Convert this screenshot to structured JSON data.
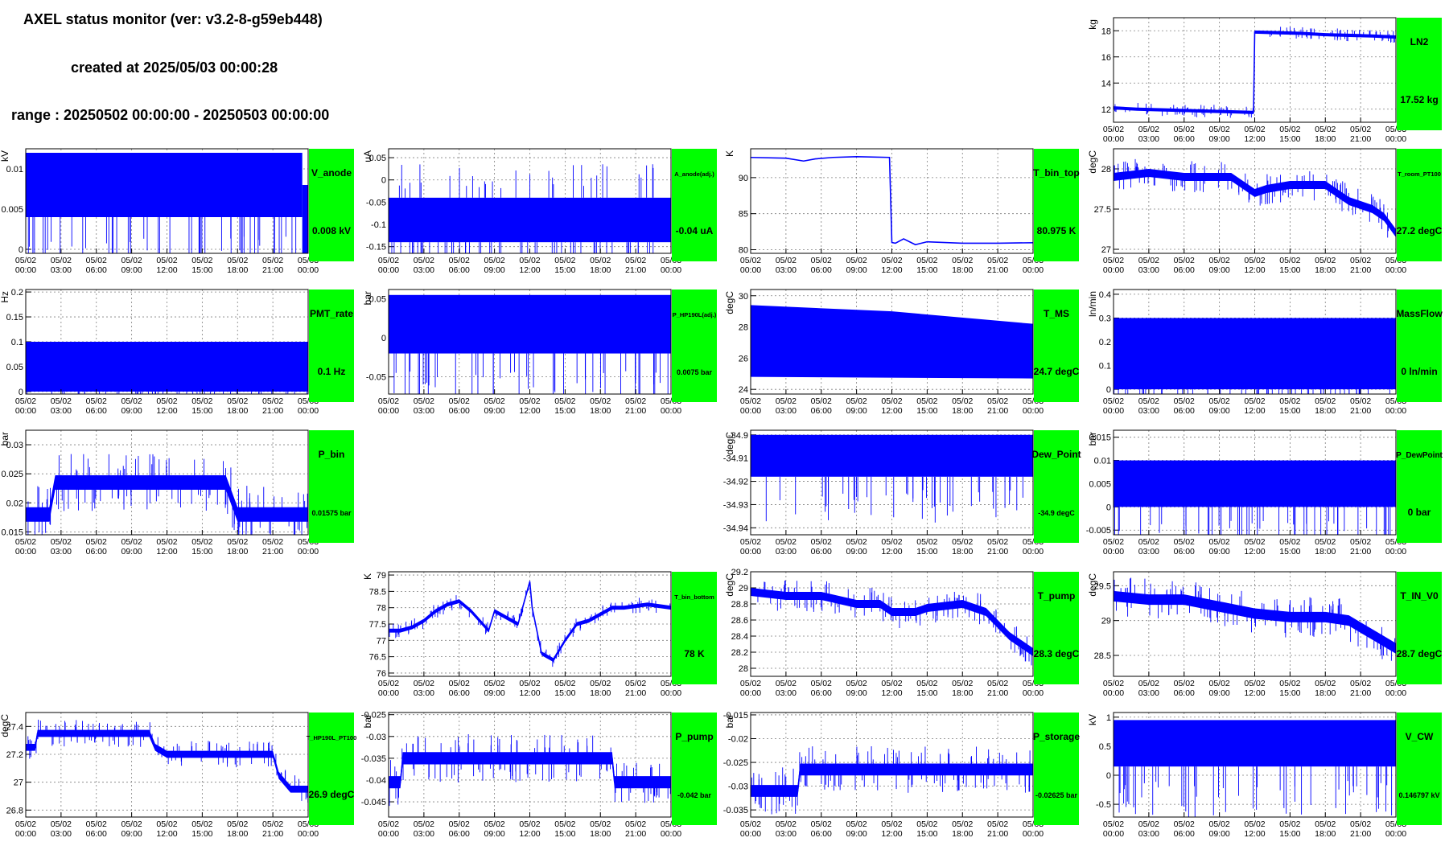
{
  "header": {
    "title": "AXEL status monitor (ver: v3.2-8-g59eb448)",
    "created": "created at 2025/05/03 00:00:28",
    "range": "range : 20250502 00:00:00 - 20250503 00:00:00"
  },
  "colors": {
    "trace": "#0000ff",
    "status_panel": "#00ff00",
    "grid": "#7f7f7f",
    "frame": "#000000"
  },
  "chart_data": [
    {
      "id": "LN2",
      "type": "line",
      "name": "LN2",
      "status": "17.52 kg",
      "ylabel": "kg",
      "ylim": [
        11,
        19
      ],
      "yticks": [
        "12",
        "14",
        "16",
        "18"
      ],
      "xticks": [
        "05/02\n00:00",
        "05/02\n03:00",
        "05/02\n06:00",
        "05/02\n09:00",
        "05/02\n12:00",
        "05/02\n15:00",
        "05/02\n18:00",
        "05/02\n21:00",
        "05/03\n00:00"
      ],
      "x": [
        0,
        2,
        4,
        6,
        8,
        10,
        11.9,
        12,
        14,
        16,
        18,
        20,
        22,
        24
      ],
      "y": [
        12.1,
        12.0,
        11.95,
        11.9,
        11.85,
        11.8,
        11.75,
        17.9,
        17.85,
        17.8,
        17.7,
        17.65,
        17.6,
        17.52
      ],
      "band": 0.25
    },
    {
      "id": "V_anode",
      "type": "line",
      "name": "V_anode",
      "status": "0.008 kV",
      "ylabel": "kV",
      "ylim": [
        -0.0005,
        0.0125
      ],
      "yticks": [
        "0",
        "0.005",
        "0.01"
      ],
      "xticks": [],
      "band_lo": 0.004,
      "band_hi": 0.012,
      "fill_to": 23.5,
      "after": 0.008
    },
    {
      "id": "A_anode",
      "type": "line",
      "name": "A_anode(adj.)",
      "status": "-0.04 uA",
      "ylabel": "uA",
      "ylim": [
        -0.165,
        0.07
      ],
      "yticks": [
        "0.05",
        "0",
        "-0.05",
        "-0.1",
        "-0.15"
      ],
      "band_lo": -0.14,
      "band_hi": -0.04,
      "spike_hi": 0.06
    },
    {
      "id": "T_bin_top",
      "type": "line",
      "name": "T_bin_top",
      "status": "80.975 K",
      "ylabel": "K",
      "ylim": [
        79.5,
        94
      ],
      "yticks": [
        "80",
        "85",
        "90"
      ],
      "x": [
        0,
        3,
        4.5,
        5.5,
        7,
        9,
        11.8,
        12,
        12.3,
        13,
        14,
        15,
        18,
        21,
        24
      ],
      "y": [
        92.8,
        92.7,
        92.3,
        92.6,
        92.8,
        92.9,
        92.8,
        81,
        80.9,
        81.5,
        80.7,
        81.1,
        80.9,
        80.9,
        80.975
      ]
    },
    {
      "id": "T_room_PT100",
      "type": "line",
      "name": "T_room_PT100",
      "status": "27.2 degC",
      "ylabel": "degC",
      "ylim": [
        26.95,
        28.25
      ],
      "yticks": [
        "27",
        "27.5",
        "28"
      ],
      "x": [
        0,
        3,
        6,
        9,
        10,
        12,
        13,
        15,
        18,
        20,
        22,
        23,
        24
      ],
      "y": [
        27.9,
        27.95,
        27.9,
        27.9,
        27.9,
        27.7,
        27.75,
        27.8,
        27.8,
        27.6,
        27.5,
        27.4,
        27.2
      ],
      "band": 0.1
    },
    {
      "id": "PMT_rate",
      "type": "line",
      "name": "PMT_rate",
      "status": "0.1 Hz",
      "ylabel": "Hz",
      "ylim": [
        -0.005,
        0.205
      ],
      "yticks": [
        "0.2",
        "0.15",
        "0.1",
        "0.05",
        "0"
      ],
      "band_lo": 0,
      "band_hi": 0.1
    },
    {
      "id": "P_HP190L",
      "type": "line",
      "name": "P_HP190L(adj.)",
      "status": "0.0075 bar",
      "ylabel": "bar",
      "ylim": [
        -0.072,
        0.062
      ],
      "yticks": [
        "0.05",
        "0",
        "-0.05"
      ],
      "band_lo": -0.02,
      "band_hi": 0.055
    },
    {
      "id": "T_MS",
      "type": "line",
      "name": "T_MS",
      "status": "24.7 degC",
      "ylabel": "degC",
      "ylim": [
        23.7,
        30.4
      ],
      "yticks": [
        "24",
        "26",
        "28",
        "30"
      ],
      "band_lo_start": 24.8,
      "band_hi_start": 29.4,
      "band_lo_end": 24.7,
      "band_hi_end": 28.2
    },
    {
      "id": "MassFlow",
      "type": "line",
      "name": "MassFlow",
      "status": "0 ln/min",
      "ylabel": "ln/min",
      "ylim": [
        -0.02,
        0.42
      ],
      "yticks": [
        "0.4",
        "0.3",
        "0.2",
        "0.1",
        "0"
      ],
      "band_lo": 0,
      "band_hi": 0.3
    },
    {
      "id": "P_bin",
      "type": "line",
      "name": "P_bin",
      "status": "0.01575 bar",
      "ylabel": "bar",
      "ylim": [
        0.0145,
        0.0325
      ],
      "yticks": [
        "0.03",
        "0.025",
        "0.02",
        "0.015"
      ],
      "x": [
        0,
        2,
        2.5,
        3,
        9,
        12,
        13.5,
        17,
        18,
        21,
        24
      ],
      "y": [
        0.018,
        0.018,
        0.0235,
        0.0235,
        0.0235,
        0.0235,
        0.0235,
        0.0235,
        0.018,
        0.018,
        0.018
      ],
      "band": 0.0025
    },
    {
      "id": "Dew_Point",
      "type": "line",
      "name": "Dew_Point",
      "status": "-34.9 degC",
      "ylabel": "degC",
      "ylim": [
        -34.943,
        -34.898
      ],
      "yticks": [
        "-34.9",
        "-34.91",
        "-34.92",
        "-34.93",
        "-34.94"
      ],
      "band_lo": -34.918,
      "band_hi": -34.9
    },
    {
      "id": "P_DewPoint",
      "type": "line",
      "name": "P_DewPoint",
      "status": "0 bar",
      "ylabel": "bar",
      "ylim": [
        -0.006,
        0.0165
      ],
      "yticks": [
        "0.015",
        "0.01",
        "0.005",
        "0",
        "-0.005"
      ],
      "band_lo": 0,
      "band_hi": 0.01
    },
    {
      "id": "T_bin_bottom",
      "type": "line",
      "name": "T_bin_bottom",
      "status": "78 K",
      "ylabel": "K",
      "ylim": [
        75.9,
        79.1
      ],
      "yticks": [
        "79",
        "78.5",
        "78",
        "77.5",
        "77",
        "76.5",
        "76"
      ],
      "x": [
        0,
        1,
        2,
        3,
        4,
        5,
        6,
        7,
        8,
        8.5,
        9,
        10,
        11,
        12,
        12.2,
        13,
        14,
        15,
        16,
        17,
        18,
        19,
        20,
        22,
        24
      ],
      "y": [
        77.3,
        77.3,
        77.4,
        77.6,
        77.9,
        78.1,
        78.2,
        77.9,
        77.5,
        77.3,
        77.9,
        77.7,
        77.5,
        78.8,
        78.0,
        76.6,
        76.4,
        77.0,
        77.5,
        77.6,
        77.8,
        78.0,
        78.0,
        78.1,
        78.0
      ],
      "band": 0.12
    },
    {
      "id": "T_pump",
      "type": "line",
      "name": "T_pump",
      "status": "28.3 degC",
      "ylabel": "degC",
      "ylim": [
        27.9,
        29.2
      ],
      "yticks": [
        "29.2",
        "29",
        "28.8",
        "28.6",
        "28.4",
        "28.2",
        "28"
      ],
      "x": [
        0,
        3,
        6,
        9,
        11,
        12,
        14,
        15,
        18,
        20,
        21,
        22,
        23,
        24
      ],
      "y": [
        28.95,
        28.9,
        28.9,
        28.8,
        28.8,
        28.7,
        28.7,
        28.75,
        28.8,
        28.7,
        28.55,
        28.4,
        28.3,
        28.2
      ],
      "band": 0.1
    },
    {
      "id": "T_IN_V0",
      "type": "line",
      "name": "T_IN_V0",
      "status": "28.7 degC",
      "ylabel": "degC",
      "ylim": [
        28.2,
        29.7
      ],
      "yticks": [
        "29.5",
        "29",
        "28.5"
      ],
      "x": [
        0,
        3,
        6,
        9,
        12,
        15,
        18,
        20,
        21,
        22,
        23,
        24
      ],
      "y": [
        29.35,
        29.3,
        29.3,
        29.2,
        29.1,
        29.05,
        29.05,
        29.0,
        28.9,
        28.8,
        28.7,
        28.6
      ],
      "band": 0.15
    },
    {
      "id": "T_HP190L_PT100",
      "type": "line",
      "name": "T_HP190L_PT100",
      "status": "26.9 degC",
      "ylabel": "degC",
      "ylim": [
        26.75,
        27.5
      ],
      "yticks": [
        "27.4",
        "27.2",
        "27",
        "26.8"
      ],
      "x": [
        0,
        0.8,
        1,
        10.5,
        11,
        12,
        21,
        21.5,
        22.5,
        24
      ],
      "y": [
        27.25,
        27.25,
        27.35,
        27.35,
        27.25,
        27.2,
        27.2,
        27.05,
        26.95,
        26.95
      ],
      "band": 0.05
    },
    {
      "id": "P_pump",
      "type": "line",
      "name": "P_pump",
      "status": "-0.042 bar",
      "ylabel": "bar",
      "ylim": [
        -0.0485,
        -0.0245
      ],
      "yticks": [
        "-0.025",
        "-0.03",
        "-0.035",
        "-0.04",
        "-0.045"
      ],
      "x": [
        0,
        1,
        1.2,
        13,
        19,
        19.2,
        24
      ],
      "y": [
        -0.0405,
        -0.0405,
        -0.035,
        -0.035,
        -0.035,
        -0.0405,
        -0.0405
      ],
      "band": 0.0028
    },
    {
      "id": "P_storage",
      "type": "line",
      "name": "P_storage",
      "status": "-0.02625 bar",
      "ylabel": "bar",
      "ylim": [
        -0.0365,
        -0.0145
      ],
      "yticks": [
        "-0.015",
        "-0.02",
        "-0.025",
        "-0.03",
        "-0.035"
      ],
      "x": [
        0,
        4,
        4.2,
        24
      ],
      "y": [
        -0.031,
        -0.031,
        -0.0265,
        -0.0265
      ],
      "band": 0.0025
    },
    {
      "id": "V_CW",
      "type": "line",
      "name": "V_CW",
      "status": "0.146797 kV",
      "ylabel": "kV",
      "ylim": [
        -0.72,
        1.08
      ],
      "yticks": [
        "1",
        "0.5",
        "0",
        "-0.5"
      ],
      "band_lo": 0.15,
      "band_hi": 0.95
    }
  ],
  "xticks_common": [
    "05/02\n00:00",
    "05/02\n03:00",
    "05/02\n06:00",
    "05/02\n09:00",
    "05/02\n12:00",
    "05/02\n15:00",
    "05/02\n18:00",
    "05/02\n21:00",
    "05/03\n00:00"
  ]
}
